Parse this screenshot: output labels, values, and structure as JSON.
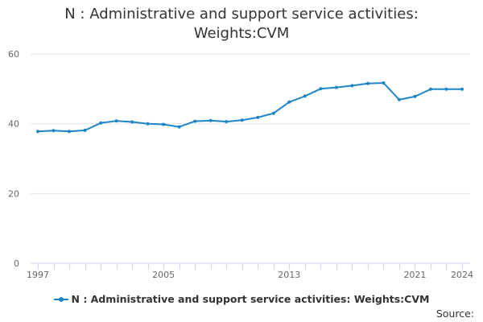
{
  "chart_title": {
    "line1": "N : Administrative and support service activities:",
    "line2": "Weights:CVM"
  },
  "legend": {
    "label": "N : Administrative and support service activities: Weights:CVM"
  },
  "source": {
    "label": "Source:"
  },
  "colors": {
    "series": "#1f86c6",
    "grid": "#e6e6e6",
    "axis": "#ccd6eb",
    "tick_text": "#666666"
  },
  "chart_data": {
    "type": "line",
    "title": "N : Administrative and support service activities: Weights:CVM",
    "xlabel": "",
    "ylabel": "",
    "ylim": [
      0,
      60
    ],
    "xlim": [
      1997,
      2024
    ],
    "y_ticks": [
      0,
      20,
      40,
      60
    ],
    "x_tick_labels": [
      "1997",
      "2005",
      "2013",
      "2021",
      "2024"
    ],
    "grid": true,
    "legend_position": "bottom-center",
    "series": [
      {
        "name": "N : Administrative and support service activities: Weights:CVM",
        "x": [
          1997,
          1998,
          1999,
          2000,
          2001,
          2002,
          2003,
          2004,
          2005,
          2006,
          2007,
          2008,
          2009,
          2010,
          2011,
          2012,
          2013,
          2014,
          2015,
          2016,
          2017,
          2018,
          2019,
          2020,
          2021,
          2022,
          2023,
          2024
        ],
        "values": [
          37.8,
          38.0,
          37.8,
          38.1,
          40.2,
          40.8,
          40.5,
          40.0,
          39.8,
          39.1,
          40.7,
          40.9,
          40.6,
          41.0,
          41.8,
          43.0,
          46.2,
          47.9,
          50.0,
          50.4,
          50.9,
          51.5,
          51.7,
          46.9,
          47.8,
          49.9,
          49.9,
          49.9
        ]
      }
    ]
  }
}
